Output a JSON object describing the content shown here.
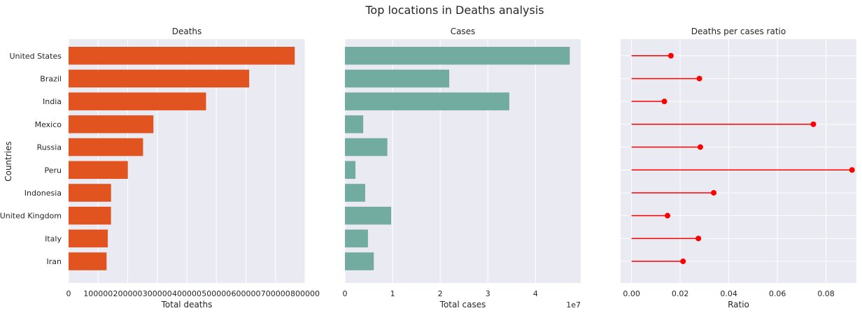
{
  "figure": {
    "suptitle": "Top locations in Deaths analysis",
    "ylabel": "Countries"
  },
  "chart_data": [
    {
      "type": "bar",
      "orientation": "horizontal",
      "title": "Deaths",
      "xlabel": "Total deaths",
      "categories": [
        "United States",
        "Brazil",
        "India",
        "Mexico",
        "Russia",
        "Peru",
        "Indonesia",
        "United Kingdom",
        "Italy",
        "Iran"
      ],
      "values": [
        765000,
        611000,
        465000,
        287000,
        252000,
        200500,
        143700,
        143500,
        132700,
        128600
      ],
      "xlim": [
        0,
        800000
      ],
      "xticks": [
        0,
        100000,
        200000,
        300000,
        400000,
        500000,
        600000,
        700000,
        800000
      ],
      "color": "#e2541f",
      "grid": true
    },
    {
      "type": "bar",
      "orientation": "horizontal",
      "title": "Cases",
      "xlabel": "Total cases",
      "offset_label": "1e7",
      "categories": [
        "United States",
        "Brazil",
        "India",
        "Mexico",
        "Russia",
        "Peru",
        "Indonesia",
        "United Kingdom",
        "Italy",
        "Iran"
      ],
      "values": [
        47200000,
        21900000,
        34500000,
        3840000,
        8900000,
        2210000,
        4250000,
        9700000,
        4830000,
        6060000
      ],
      "xlim": [
        0,
        49500000
      ],
      "xticks": [
        0,
        10000000,
        20000000,
        30000000,
        40000000
      ],
      "xticklabels": [
        "0",
        "1",
        "2",
        "3",
        "4"
      ],
      "color": "#72ab9f",
      "grid": true
    },
    {
      "type": "lollipop",
      "orientation": "horizontal",
      "title": "Deaths per cases ratio",
      "xlabel": "Ratio",
      "categories": [
        "United States",
        "Brazil",
        "India",
        "Mexico",
        "Russia",
        "Peru",
        "Indonesia",
        "United Kingdom",
        "Italy",
        "Iran"
      ],
      "values": [
        0.0162,
        0.0279,
        0.0135,
        0.0748,
        0.0283,
        0.0907,
        0.0338,
        0.0148,
        0.0275,
        0.0212
      ],
      "xlim": [
        -0.0045,
        0.0925
      ],
      "xticks": [
        0.0,
        0.02,
        0.04,
        0.06,
        0.08
      ],
      "xticklabels": [
        "0.00",
        "0.02",
        "0.04",
        "0.06",
        "0.08"
      ],
      "color": "#ff0000",
      "grid": true
    }
  ]
}
